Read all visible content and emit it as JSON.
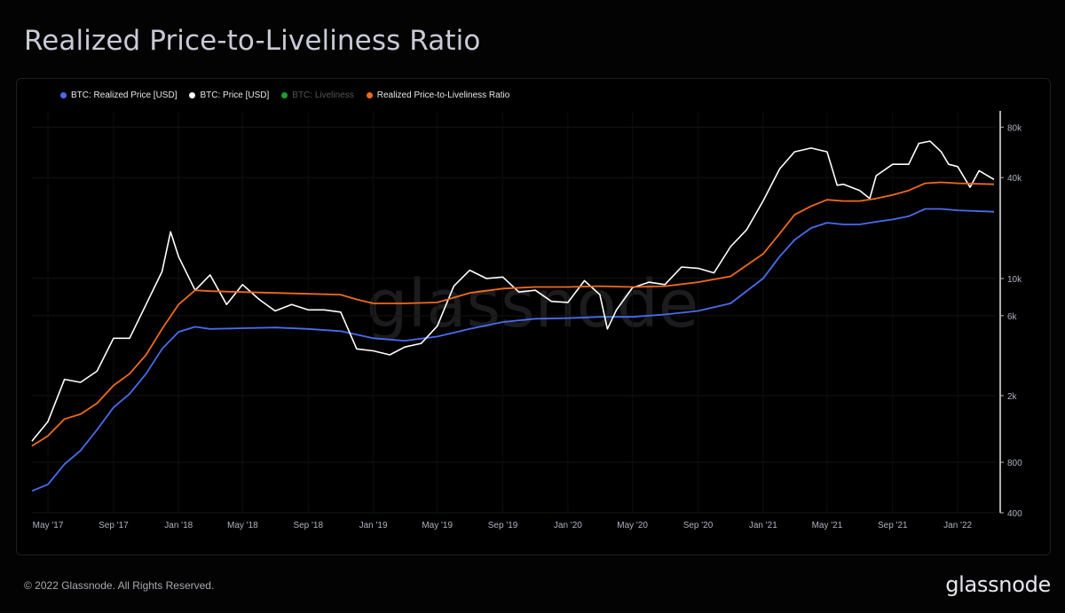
{
  "header": {
    "title": "Realized Price-to-Liveliness Ratio"
  },
  "footer": {
    "copyright": "© 2022 Glassnode. All Rights Reserved.",
    "logo_text": "glassnode"
  },
  "watermark": "glassnode",
  "colors": {
    "background": "#000000",
    "realized_price": "#4a6cf0",
    "price": "#ffffff",
    "liveliness": "#1e9e2f",
    "ratio": "#f06a1e",
    "axis_text": "#aeb2c0"
  },
  "chart_data": {
    "type": "line",
    "title": "Realized Price-to-Liveliness Ratio",
    "xlabel": "",
    "ylabel": "",
    "y_scale": "log",
    "ylim": [
      400,
      100000
    ],
    "x_range": [
      "2017-04-01",
      "2022-03-15"
    ],
    "x_ticks": [
      {
        "date": "2017-05-01",
        "label": "May '17"
      },
      {
        "date": "2017-09-01",
        "label": "Sep '17"
      },
      {
        "date": "2018-01-01",
        "label": "Jan '18"
      },
      {
        "date": "2018-05-01",
        "label": "May '18"
      },
      {
        "date": "2018-09-01",
        "label": "Sep '18"
      },
      {
        "date": "2019-01-01",
        "label": "Jan '19"
      },
      {
        "date": "2019-05-01",
        "label": "May '19"
      },
      {
        "date": "2019-09-01",
        "label": "Sep '19"
      },
      {
        "date": "2020-01-01",
        "label": "Jan '20"
      },
      {
        "date": "2020-05-01",
        "label": "May '20"
      },
      {
        "date": "2020-09-01",
        "label": "Sep '20"
      },
      {
        "date": "2021-01-01",
        "label": "Jan '21"
      },
      {
        "date": "2021-05-01",
        "label": "May '21"
      },
      {
        "date": "2021-09-01",
        "label": "Sep '21"
      },
      {
        "date": "2022-01-01",
        "label": "Jan '22"
      }
    ],
    "y_ticks": [
      {
        "value": 80000,
        "label": "80k"
      },
      {
        "value": 40000,
        "label": "40k"
      },
      {
        "value": 10000,
        "label": "10k"
      },
      {
        "value": 6000,
        "label": "6k"
      },
      {
        "value": 2000,
        "label": "2k"
      },
      {
        "value": 800,
        "label": "800"
      },
      {
        "value": 400,
        "label": "400"
      }
    ],
    "grid": true,
    "legend_position": "top-left",
    "series": [
      {
        "name": "BTC: Realized Price [USD]",
        "color": "#4a6cf0",
        "points": [
          [
            "2017-04-01",
            540
          ],
          [
            "2017-05-01",
            590
          ],
          [
            "2017-06-01",
            780
          ],
          [
            "2017-07-01",
            940
          ],
          [
            "2017-08-01",
            1250
          ],
          [
            "2017-09-01",
            1700
          ],
          [
            "2017-10-01",
            2050
          ],
          [
            "2017-11-01",
            2700
          ],
          [
            "2017-12-01",
            3800
          ],
          [
            "2018-01-01",
            4800
          ],
          [
            "2018-02-01",
            5150
          ],
          [
            "2018-03-01",
            5000
          ],
          [
            "2018-05-01",
            5050
          ],
          [
            "2018-07-01",
            5100
          ],
          [
            "2018-09-01",
            5000
          ],
          [
            "2018-11-01",
            4850
          ],
          [
            "2019-01-01",
            4400
          ],
          [
            "2019-03-01",
            4250
          ],
          [
            "2019-05-01",
            4500
          ],
          [
            "2019-07-01",
            5000
          ],
          [
            "2019-09-01",
            5500
          ],
          [
            "2019-11-01",
            5750
          ],
          [
            "2020-01-01",
            5800
          ],
          [
            "2020-03-01",
            5900
          ],
          [
            "2020-05-01",
            5900
          ],
          [
            "2020-07-01",
            6100
          ],
          [
            "2020-09-01",
            6400
          ],
          [
            "2020-11-01",
            7100
          ],
          [
            "2021-01-01",
            10000
          ],
          [
            "2021-02-01",
            13500
          ],
          [
            "2021-03-01",
            17000
          ],
          [
            "2021-04-01",
            20000
          ],
          [
            "2021-05-01",
            21500
          ],
          [
            "2021-06-01",
            21000
          ],
          [
            "2021-07-01",
            21000
          ],
          [
            "2021-08-01",
            21800
          ],
          [
            "2021-09-01",
            22500
          ],
          [
            "2021-10-01",
            23500
          ],
          [
            "2021-11-01",
            26000
          ],
          [
            "2021-12-01",
            26000
          ],
          [
            "2022-01-01",
            25500
          ],
          [
            "2022-03-10",
            25000
          ]
        ]
      },
      {
        "name": "BTC: Price [USD]",
        "color": "#ffffff",
        "points": [
          [
            "2017-04-01",
            1070
          ],
          [
            "2017-05-01",
            1400
          ],
          [
            "2017-06-01",
            2500
          ],
          [
            "2017-07-01",
            2400
          ],
          [
            "2017-08-01",
            2800
          ],
          [
            "2017-09-01",
            4400
          ],
          [
            "2017-10-01",
            4400
          ],
          [
            "2017-11-01",
            7000
          ],
          [
            "2017-12-01",
            11000
          ],
          [
            "2017-12-17",
            19000
          ],
          [
            "2018-01-01",
            13500
          ],
          [
            "2018-02-01",
            8500
          ],
          [
            "2018-03-01",
            10500
          ],
          [
            "2018-04-01",
            7000
          ],
          [
            "2018-05-01",
            9200
          ],
          [
            "2018-06-01",
            7500
          ],
          [
            "2018-07-01",
            6400
          ],
          [
            "2018-08-01",
            7000
          ],
          [
            "2018-09-01",
            6500
          ],
          [
            "2018-10-01",
            6500
          ],
          [
            "2018-11-01",
            6300
          ],
          [
            "2018-12-01",
            3800
          ],
          [
            "2019-01-01",
            3700
          ],
          [
            "2019-02-01",
            3500
          ],
          [
            "2019-03-01",
            3900
          ],
          [
            "2019-04-01",
            4100
          ],
          [
            "2019-05-01",
            5200
          ],
          [
            "2019-06-01",
            9000
          ],
          [
            "2019-07-01",
            11200
          ],
          [
            "2019-08-01",
            10000
          ],
          [
            "2019-09-01",
            10200
          ],
          [
            "2019-10-01",
            8300
          ],
          [
            "2019-11-01",
            8500
          ],
          [
            "2019-12-01",
            7300
          ],
          [
            "2020-01-01",
            7200
          ],
          [
            "2020-02-01",
            9700
          ],
          [
            "2020-03-01",
            8000
          ],
          [
            "2020-03-15",
            5000
          ],
          [
            "2020-04-01",
            6500
          ],
          [
            "2020-05-01",
            8800
          ],
          [
            "2020-06-01",
            9500
          ],
          [
            "2020-07-01",
            9200
          ],
          [
            "2020-08-01",
            11700
          ],
          [
            "2020-09-01",
            11500
          ],
          [
            "2020-10-01",
            10800
          ],
          [
            "2020-11-01",
            15500
          ],
          [
            "2020-12-01",
            19500
          ],
          [
            "2021-01-01",
            29000
          ],
          [
            "2021-02-01",
            45000
          ],
          [
            "2021-03-01",
            57000
          ],
          [
            "2021-04-01",
            60000
          ],
          [
            "2021-05-01",
            57000
          ],
          [
            "2021-05-20",
            36000
          ],
          [
            "2021-06-01",
            36500
          ],
          [
            "2021-07-01",
            33500
          ],
          [
            "2021-07-20",
            30000
          ],
          [
            "2021-08-01",
            41000
          ],
          [
            "2021-09-01",
            48000
          ],
          [
            "2021-10-01",
            48000
          ],
          [
            "2021-10-20",
            64000
          ],
          [
            "2021-11-10",
            66000
          ],
          [
            "2021-12-01",
            57000
          ],
          [
            "2021-12-15",
            48000
          ],
          [
            "2022-01-01",
            46500
          ],
          [
            "2022-01-24",
            35000
          ],
          [
            "2022-02-10",
            44000
          ],
          [
            "2022-03-10",
            39000
          ]
        ]
      },
      {
        "name": "Realized Price-to-Liveliness Ratio",
        "color": "#f06a1e",
        "points": [
          [
            "2017-04-01",
            1000
          ],
          [
            "2017-05-01",
            1150
          ],
          [
            "2017-06-01",
            1450
          ],
          [
            "2017-07-01",
            1550
          ],
          [
            "2017-08-01",
            1800
          ],
          [
            "2017-09-01",
            2300
          ],
          [
            "2017-10-01",
            2700
          ],
          [
            "2017-11-01",
            3500
          ],
          [
            "2017-12-01",
            5000
          ],
          [
            "2018-01-01",
            7000
          ],
          [
            "2018-02-01",
            8500
          ],
          [
            "2018-03-01",
            8400
          ],
          [
            "2018-05-01",
            8300
          ],
          [
            "2018-07-01",
            8200
          ],
          [
            "2018-09-01",
            8100
          ],
          [
            "2018-11-01",
            8000
          ],
          [
            "2018-12-01",
            7500
          ],
          [
            "2019-01-01",
            7100
          ],
          [
            "2019-03-01",
            7100
          ],
          [
            "2019-05-01",
            7200
          ],
          [
            "2019-07-01",
            8200
          ],
          [
            "2019-09-01",
            8700
          ],
          [
            "2019-11-01",
            8900
          ],
          [
            "2020-01-01",
            8900
          ],
          [
            "2020-03-01",
            9000
          ],
          [
            "2020-05-01",
            8900
          ],
          [
            "2020-07-01",
            9000
          ],
          [
            "2020-09-01",
            9500
          ],
          [
            "2020-11-01",
            10300
          ],
          [
            "2021-01-01",
            14000
          ],
          [
            "2021-02-01",
            18500
          ],
          [
            "2021-03-01",
            24000
          ],
          [
            "2021-04-01",
            27000
          ],
          [
            "2021-05-01",
            29500
          ],
          [
            "2021-06-01",
            29000
          ],
          [
            "2021-07-01",
            29000
          ],
          [
            "2021-08-01",
            30000
          ],
          [
            "2021-09-01",
            31500
          ],
          [
            "2021-10-01",
            33500
          ],
          [
            "2021-11-01",
            37000
          ],
          [
            "2021-12-01",
            37500
          ],
          [
            "2022-01-01",
            37000
          ],
          [
            "2022-03-10",
            36500
          ]
        ]
      }
    ],
    "legend": [
      {
        "name": "BTC: Realized Price [USD]",
        "color": "#4a6cf0",
        "active": true
      },
      {
        "name": "BTC: Price [USD]",
        "color": "#ffffff",
        "active": true
      },
      {
        "name": "BTC: Liveliness",
        "color": "#1e9e2f",
        "active": false
      },
      {
        "name": "Realized Price-to-Liveliness Ratio",
        "color": "#f06a1e",
        "active": true
      }
    ]
  }
}
